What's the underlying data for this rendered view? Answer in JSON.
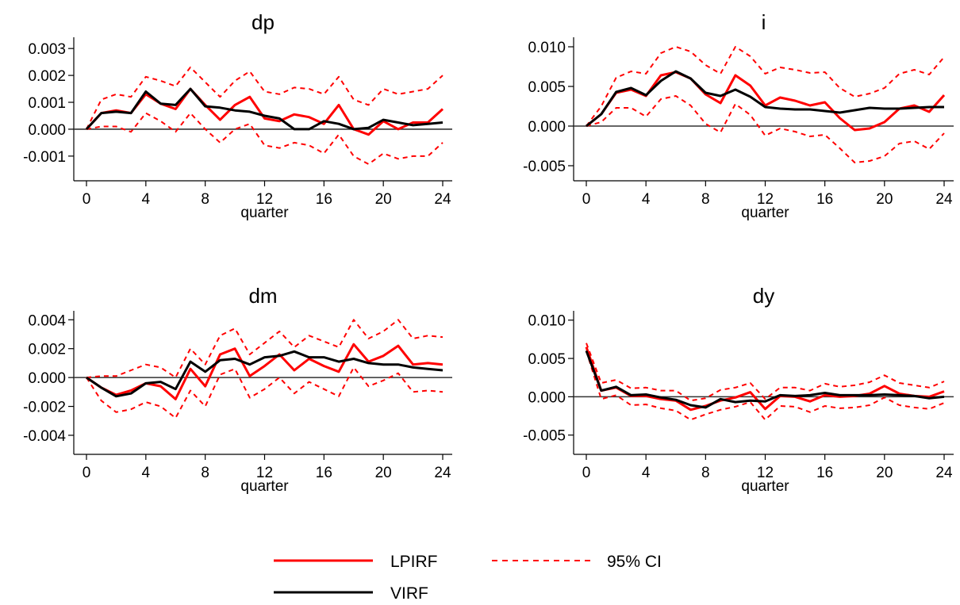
{
  "legend": {
    "items": [
      {
        "label": "LPIRF",
        "color": "#ff0000",
        "style": "solid"
      },
      {
        "label": "95% CI",
        "color": "#ff0000",
        "style": "dashed"
      },
      {
        "label": "VIRF",
        "color": "#000000",
        "style": "solid"
      }
    ]
  },
  "chart_data": [
    {
      "type": "line",
      "title": "dp",
      "xlabel": "quarter",
      "ylabel": "",
      "xlim": [
        0,
        24
      ],
      "ylim": [
        -0.0018,
        0.0033
      ],
      "xticks": [
        0,
        4,
        8,
        12,
        16,
        20,
        24
      ],
      "yticks": [
        -0.001,
        0.0,
        0.001,
        0.002,
        0.003
      ],
      "ytick_labels": [
        "-0.001",
        "0.000",
        "0.001",
        "0.002",
        "0.003"
      ],
      "x": [
        0,
        1,
        2,
        3,
        4,
        5,
        6,
        7,
        8,
        9,
        10,
        11,
        12,
        13,
        14,
        15,
        16,
        17,
        18,
        19,
        20,
        21,
        22,
        23,
        24
      ],
      "series": [
        {
          "name": "LPIRF",
          "color": "#ff0000",
          "style": "solid",
          "values": [
            0.0,
            0.0006,
            0.0007,
            0.0006,
            0.0013,
            0.00095,
            0.00075,
            0.0015,
            0.0009,
            0.00035,
            0.0009,
            0.0012,
            0.0004,
            0.0003,
            0.00055,
            0.00045,
            0.0002,
            0.0009,
            0.0,
            -0.0002,
            0.0003,
            0.0,
            0.00025,
            0.00025,
            0.00075
          ]
        },
        {
          "name": "VIRF",
          "color": "#000000",
          "style": "solid",
          "values": [
            0.0,
            0.0006,
            0.00065,
            0.0006,
            0.0014,
            0.00095,
            0.0009,
            0.0015,
            0.00085,
            0.0008,
            0.0007,
            0.00065,
            0.0005,
            0.0004,
            0.0,
            0.0,
            0.0003,
            0.0002,
            0.0,
            5e-05,
            0.00035,
            0.00025,
            0.00015,
            0.0002,
            0.00025
          ]
        },
        {
          "name": "95% CI",
          "color": "#ff0000",
          "style": "dashed",
          "values": [
            0.0,
            0.0011,
            0.0013,
            0.0012,
            0.00195,
            0.0018,
            0.0016,
            0.0023,
            0.00175,
            0.0012,
            0.0018,
            0.00215,
            0.0014,
            0.0013,
            0.00155,
            0.0015,
            0.0013,
            0.00195,
            0.0011,
            0.0009,
            0.0015,
            0.0013,
            0.0014,
            0.0015,
            0.002
          ]
        },
        {
          "name": "95% CI",
          "color": "#ff0000",
          "style": "dashed",
          "values": [
            0.0,
            0.0001,
            0.0001,
            -0.0001,
            0.0006,
            0.0003,
            -0.0001,
            0.0006,
            0.0,
            -0.0005,
            0.0,
            0.0002,
            -0.0006,
            -0.0007,
            -0.0005,
            -0.0006,
            -0.0009,
            -0.0002,
            -0.001,
            -0.0013,
            -0.0009,
            -0.0011,
            -0.001,
            -0.001,
            -0.0005
          ]
        }
      ]
    },
    {
      "type": "line",
      "title": "i",
      "xlabel": "quarter",
      "ylabel": "",
      "xlim": [
        0,
        24
      ],
      "ylim": [
        -0.0065,
        0.0108
      ],
      "xticks": [
        0,
        4,
        8,
        12,
        16,
        20,
        24
      ],
      "yticks": [
        -0.005,
        0.0,
        0.005,
        0.01
      ],
      "ytick_labels": [
        "-0.005",
        "0.000",
        "0.005",
        "0.010"
      ],
      "x": [
        0,
        1,
        2,
        3,
        4,
        5,
        6,
        7,
        8,
        9,
        10,
        11,
        12,
        13,
        14,
        15,
        16,
        17,
        18,
        19,
        20,
        21,
        22,
        23,
        24
      ],
      "series": [
        {
          "name": "LPIRF",
          "color": "#ff0000",
          "style": "solid",
          "values": [
            0.0,
            0.0015,
            0.0042,
            0.0046,
            0.0038,
            0.0064,
            0.0068,
            0.006,
            0.004,
            0.0029,
            0.0064,
            0.0051,
            0.0026,
            0.0036,
            0.0032,
            0.0026,
            0.003,
            0.001,
            -0.0005,
            -0.0003,
            0.0005,
            0.0022,
            0.0026,
            0.0018,
            0.0039
          ]
        },
        {
          "name": "VIRF",
          "color": "#000000",
          "style": "solid",
          "values": [
            0.0,
            0.0015,
            0.0043,
            0.0048,
            0.0039,
            0.0057,
            0.0069,
            0.006,
            0.0042,
            0.0038,
            0.0046,
            0.0037,
            0.0024,
            0.0022,
            0.0021,
            0.0021,
            0.0019,
            0.0017,
            0.002,
            0.0023,
            0.0022,
            0.0022,
            0.0023,
            0.0024,
            0.0024
          ]
        },
        {
          "name": "95% CI",
          "color": "#ff0000",
          "style": "dashed",
          "values": [
            0.0,
            0.0025,
            0.0061,
            0.0069,
            0.0066,
            0.0092,
            0.01,
            0.0094,
            0.0077,
            0.0066,
            0.01,
            0.0088,
            0.0066,
            0.0074,
            0.0071,
            0.0067,
            0.0068,
            0.0048,
            0.0037,
            0.0041,
            0.0048,
            0.0066,
            0.0071,
            0.0065,
            0.0087
          ]
        },
        {
          "name": "95% CI",
          "color": "#ff0000",
          "style": "dashed",
          "values": [
            0.0,
            0.0005,
            0.0023,
            0.0023,
            0.0012,
            0.0034,
            0.0038,
            0.0026,
            0.0003,
            -0.0008,
            0.0028,
            0.0014,
            -0.0012,
            -0.0003,
            -0.0007,
            -0.0013,
            -0.0011,
            -0.0028,
            -0.0046,
            -0.0044,
            -0.0038,
            -0.0022,
            -0.0019,
            -0.0029,
            -0.0009
          ]
        }
      ]
    },
    {
      "type": "line",
      "title": "dm",
      "xlabel": "quarter",
      "ylabel": "",
      "xlim": [
        0,
        24
      ],
      "ylim": [
        -0.0051,
        0.0044
      ],
      "xticks": [
        0,
        4,
        8,
        12,
        16,
        20,
        24
      ],
      "yticks": [
        -0.004,
        -0.002,
        0.0,
        0.002,
        0.004
      ],
      "ytick_labels": [
        "-0.004",
        "-0.002",
        "0.000",
        "0.002",
        "0.004"
      ],
      "x": [
        0,
        1,
        2,
        3,
        4,
        5,
        6,
        7,
        8,
        9,
        10,
        11,
        12,
        13,
        14,
        15,
        16,
        17,
        18,
        19,
        20,
        21,
        22,
        23,
        24
      ],
      "series": [
        {
          "name": "LPIRF",
          "color": "#ff0000",
          "style": "solid",
          "values": [
            0.0,
            -0.0007,
            -0.0012,
            -0.0009,
            -0.0004,
            -0.0006,
            -0.0015,
            0.0006,
            -0.0006,
            0.0016,
            0.002,
            0.0001,
            0.0008,
            0.0016,
            0.0005,
            0.0013,
            0.0008,
            0.0004,
            0.0023,
            0.0011,
            0.0015,
            0.0022,
            0.0009,
            0.001,
            0.0009
          ]
        },
        {
          "name": "VIRF",
          "color": "#000000",
          "style": "solid",
          "values": [
            0.0,
            -0.0007,
            -0.0013,
            -0.0011,
            -0.0004,
            -0.0003,
            -0.0008,
            0.0011,
            0.0004,
            0.0012,
            0.0013,
            0.0009,
            0.0014,
            0.0015,
            0.0018,
            0.0014,
            0.0014,
            0.0011,
            0.0013,
            0.001,
            0.0009,
            0.0009,
            0.0007,
            0.0006,
            0.0005
          ]
        },
        {
          "name": "95% CI",
          "color": "#ff0000",
          "style": "dashed",
          "values": [
            0.0,
            0.0001,
            0.0001,
            0.0005,
            0.0009,
            0.0007,
            0.0,
            0.002,
            0.0009,
            0.0029,
            0.0034,
            0.0016,
            0.0024,
            0.0032,
            0.0021,
            0.0029,
            0.0025,
            0.0021,
            0.004,
            0.0027,
            0.0032,
            0.004,
            0.0027,
            0.0029,
            0.0028
          ]
        },
        {
          "name": "95% CI",
          "color": "#ff0000",
          "style": "dashed",
          "values": [
            0.0,
            -0.0016,
            -0.0024,
            -0.0022,
            -0.0017,
            -0.002,
            -0.0028,
            -0.0009,
            -0.002,
            0.0002,
            0.0006,
            -0.0014,
            -0.0008,
            0.0,
            -0.0011,
            -0.0003,
            -0.0008,
            -0.0013,
            0.0007,
            -0.0006,
            -0.0002,
            0.0003,
            -0.001,
            -0.0009,
            -0.001
          ]
        }
      ]
    },
    {
      "type": "line",
      "title": "dy",
      "xlabel": "quarter",
      "ylabel": "",
      "xlim": [
        0,
        24
      ],
      "ylim": [
        -0.0071,
        0.0108
      ],
      "xticks": [
        0,
        4,
        8,
        12,
        16,
        20,
        24
      ],
      "yticks": [
        -0.005,
        0.0,
        0.005,
        0.01
      ],
      "ytick_labels": [
        "-0.005",
        "0.000",
        "0.005",
        "0.010"
      ],
      "x": [
        0,
        1,
        2,
        3,
        4,
        5,
        6,
        7,
        8,
        9,
        10,
        11,
        12,
        13,
        14,
        15,
        16,
        17,
        18,
        19,
        20,
        21,
        22,
        23,
        24
      ],
      "series": [
        {
          "name": "LPIRF",
          "color": "#ff0000",
          "style": "solid",
          "values": [
            0.0065,
            0.0008,
            0.0012,
            0.0001,
            0.0001,
            -0.0003,
            -0.0005,
            -0.0017,
            -0.0012,
            -0.0005,
            -0.0001,
            0.0006,
            -0.0016,
            0.0001,
            0.0,
            -0.0006,
            0.0002,
            0.0,
            0.0001,
            0.0004,
            0.0014,
            0.0004,
            0.0001,
            0.0,
            0.0007
          ]
        },
        {
          "name": "VIRF",
          "color": "#000000",
          "style": "solid",
          "values": [
            0.006,
            0.0008,
            0.0013,
            0.0002,
            0.0003,
            -0.0001,
            -0.0004,
            -0.0011,
            -0.0014,
            -0.0003,
            -0.0007,
            -0.0005,
            -0.0006,
            0.0002,
            0.0001,
            0.0002,
            0.0005,
            0.0002,
            0.0002,
            0.0002,
            0.0003,
            0.0002,
            0.0001,
            -0.0002,
            0.0
          ]
        },
        {
          "name": "95% CI",
          "color": "#ff0000",
          "style": "dashed",
          "values": [
            0.007,
            0.0018,
            0.0022,
            0.0011,
            0.0012,
            0.0008,
            0.0008,
            -0.0005,
            -0.0002,
            0.0009,
            0.0012,
            0.0018,
            -0.0003,
            0.0012,
            0.0012,
            0.0008,
            0.0017,
            0.0013,
            0.0015,
            0.0019,
            0.0028,
            0.0018,
            0.0015,
            0.0012,
            0.002
          ]
        },
        {
          "name": "95% CI",
          "color": "#ff0000",
          "style": "dashed",
          "values": [
            0.006,
            -0.0003,
            0.0002,
            -0.0011,
            -0.001,
            -0.0015,
            -0.0018,
            -0.003,
            -0.0023,
            -0.0017,
            -0.0013,
            -0.0007,
            -0.003,
            -0.0012,
            -0.0013,
            -0.002,
            -0.0012,
            -0.0015,
            -0.0014,
            -0.0011,
            -0.0001,
            -0.0011,
            -0.0014,
            -0.0016,
            -0.0008
          ]
        }
      ]
    }
  ]
}
